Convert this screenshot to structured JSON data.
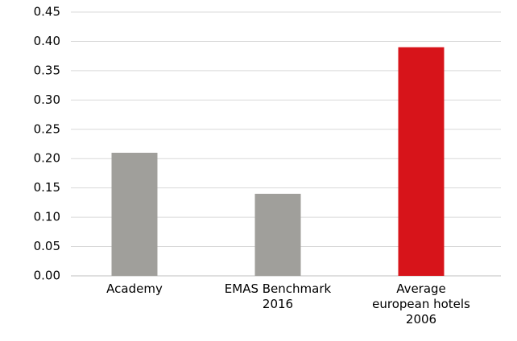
{
  "chart_data": {
    "type": "bar",
    "categories": [
      "Academy",
      "EMAS Benchmark\n2016",
      "Average\neuropean hotels\n2006"
    ],
    "values": [
      0.21,
      0.14,
      0.39
    ],
    "colors": [
      "#a09f9b",
      "#a09f9b",
      "#d7141a"
    ],
    "ylim": [
      0,
      0.45
    ],
    "yticks": [
      {
        "value": 0,
        "label": "0.00"
      },
      0.05,
      {
        "value": 0.1,
        "label": "0.10"
      },
      0.15,
      {
        "value": 0.2,
        "label": "0.20"
      },
      0.25,
      {
        "value": 0.3,
        "label": "0.30"
      },
      0.35,
      {
        "value": 0.4,
        "label": "0.40"
      },
      0.45
    ],
    "grid": true
  }
}
